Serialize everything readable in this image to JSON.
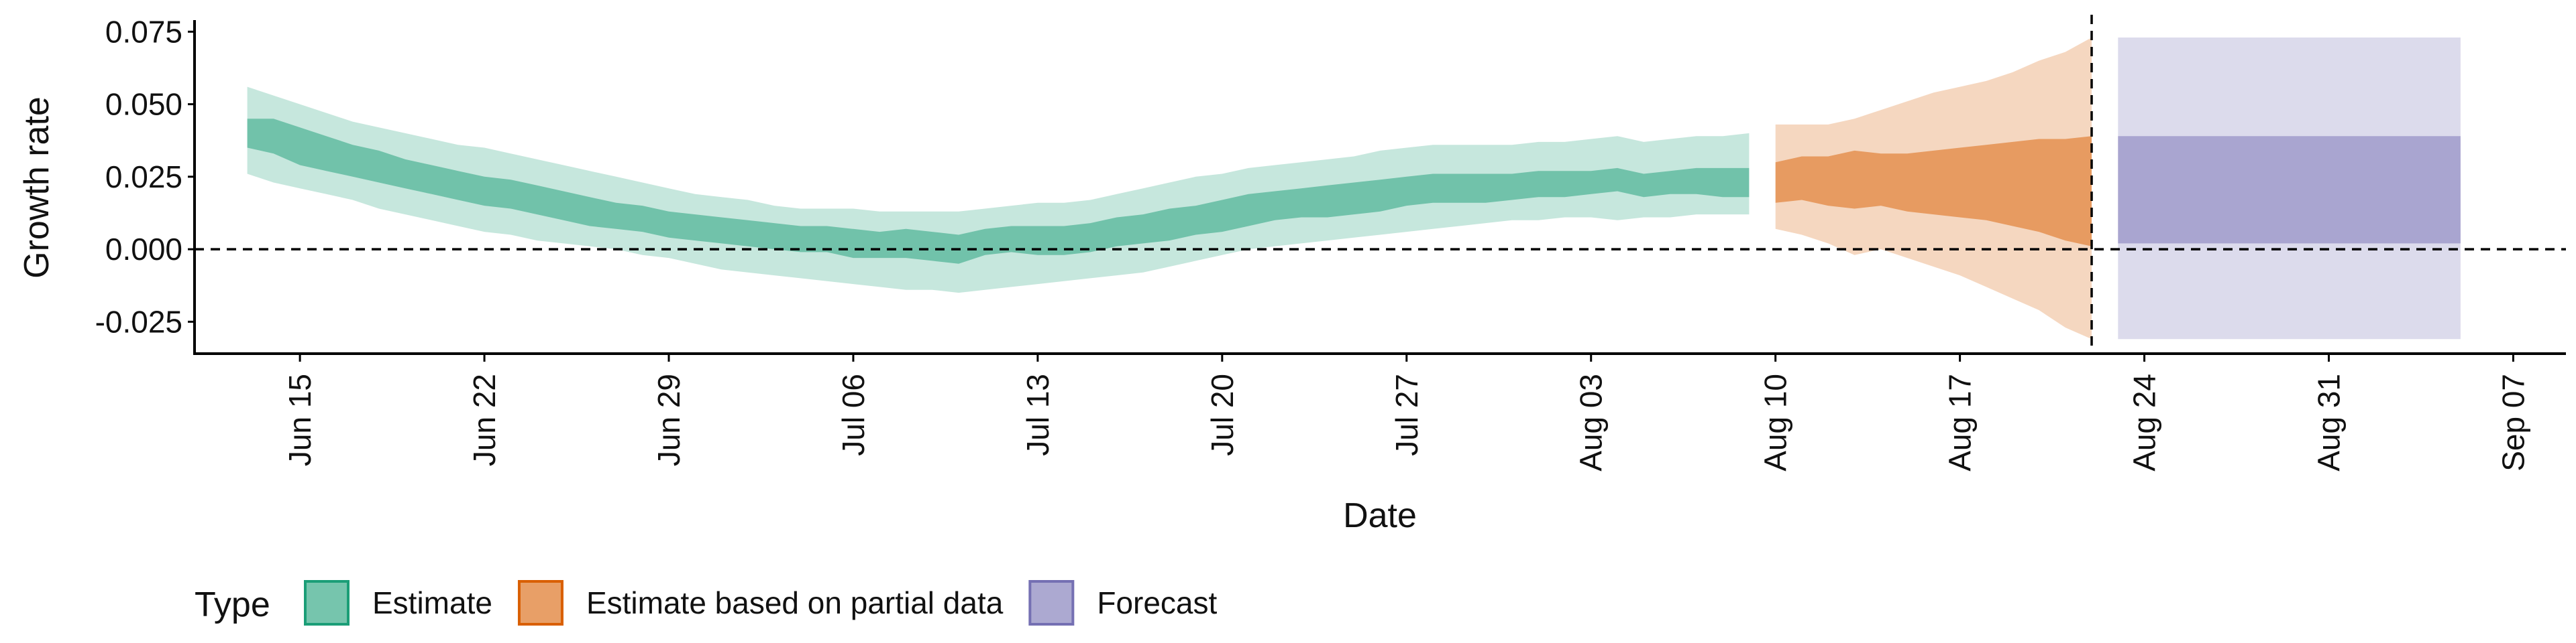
{
  "chart_data": {
    "type": "area",
    "xlabel": "Date",
    "ylabel": "Growth rate",
    "xlim": [
      "2020-06-11",
      "2020-09-09"
    ],
    "ylim": [
      -0.036,
      0.079
    ],
    "x_ticks": [
      {
        "date": "2020-06-15",
        "label": "Jun 15"
      },
      {
        "date": "2020-06-22",
        "label": "Jun 22"
      },
      {
        "date": "2020-06-29",
        "label": "Jun 29"
      },
      {
        "date": "2020-07-06",
        "label": "Jul 06"
      },
      {
        "date": "2020-07-13",
        "label": "Jul 13"
      },
      {
        "date": "2020-07-20",
        "label": "Jul 20"
      },
      {
        "date": "2020-07-27",
        "label": "Jul 27"
      },
      {
        "date": "2020-08-03",
        "label": "Aug 03"
      },
      {
        "date": "2020-08-10",
        "label": "Aug 10"
      },
      {
        "date": "2020-08-17",
        "label": "Aug 17"
      },
      {
        "date": "2020-08-24",
        "label": "Aug 24"
      },
      {
        "date": "2020-08-31",
        "label": "Aug 31"
      },
      {
        "date": "2020-09-07",
        "label": "Sep 07"
      }
    ],
    "y_ticks": [
      {
        "value": 0.075,
        "label": "0.075"
      },
      {
        "value": 0.05,
        "label": "0.050"
      },
      {
        "value": 0.025,
        "label": "0.025"
      },
      {
        "value": 0.0,
        "label": "0.000"
      },
      {
        "value": -0.025,
        "label": "-0.025"
      }
    ],
    "reference_lines": [
      {
        "axis": "y",
        "value": 0,
        "style": "dashed"
      },
      {
        "axis": "x",
        "value": "2020-08-22",
        "style": "dashed"
      }
    ],
    "grid": false,
    "legend": {
      "title": "Type",
      "position": "bottom-left",
      "items": [
        {
          "label": "Estimate",
          "color": "#1b9e77"
        },
        {
          "label": "Estimate based on partial data",
          "color": "#d95f02"
        },
        {
          "label": "Forecast",
          "color": "#7570b3"
        }
      ]
    },
    "series": [
      {
        "name": "Estimate",
        "color": "#1b9e77",
        "x": [
          "2020-06-13",
          "2020-06-14",
          "2020-06-15",
          "2020-06-16",
          "2020-06-17",
          "2020-06-18",
          "2020-06-19",
          "2020-06-20",
          "2020-06-21",
          "2020-06-22",
          "2020-06-23",
          "2020-06-24",
          "2020-06-25",
          "2020-06-26",
          "2020-06-27",
          "2020-06-28",
          "2020-06-29",
          "2020-06-30",
          "2020-07-01",
          "2020-07-02",
          "2020-07-03",
          "2020-07-04",
          "2020-07-05",
          "2020-07-06",
          "2020-07-07",
          "2020-07-08",
          "2020-07-09",
          "2020-07-10",
          "2020-07-11",
          "2020-07-12",
          "2020-07-13",
          "2020-07-14",
          "2020-07-15",
          "2020-07-16",
          "2020-07-17",
          "2020-07-18",
          "2020-07-19",
          "2020-07-20",
          "2020-07-21",
          "2020-07-22",
          "2020-07-23",
          "2020-07-24",
          "2020-07-25",
          "2020-07-26",
          "2020-07-27",
          "2020-07-28",
          "2020-07-29",
          "2020-07-30",
          "2020-07-31",
          "2020-08-01",
          "2020-08-02",
          "2020-08-03",
          "2020-08-04",
          "2020-08-05",
          "2020-08-06",
          "2020-08-07",
          "2020-08-08",
          "2020-08-09"
        ],
        "lower_90": [
          0.026,
          0.023,
          0.021,
          0.019,
          0.017,
          0.014,
          0.012,
          0.01,
          0.008,
          0.006,
          0.005,
          0.003,
          0.002,
          0.001,
          0.0,
          -0.002,
          -0.003,
          -0.005,
          -0.007,
          -0.008,
          -0.009,
          -0.01,
          -0.011,
          -0.012,
          -0.013,
          -0.014,
          -0.014,
          -0.015,
          -0.014,
          -0.013,
          -0.012,
          -0.011,
          -0.01,
          -0.009,
          -0.008,
          -0.006,
          -0.004,
          -0.002,
          0.0,
          0.001,
          0.002,
          0.003,
          0.004,
          0.005,
          0.006,
          0.007,
          0.008,
          0.009,
          0.01,
          0.01,
          0.011,
          0.011,
          0.01,
          0.011,
          0.011,
          0.012,
          0.012,
          0.012
        ],
        "lower_50": [
          0.035,
          0.033,
          0.029,
          0.027,
          0.025,
          0.023,
          0.021,
          0.019,
          0.017,
          0.015,
          0.014,
          0.012,
          0.01,
          0.008,
          0.007,
          0.006,
          0.004,
          0.003,
          0.002,
          0.001,
          0.0,
          -0.001,
          -0.001,
          -0.003,
          -0.003,
          -0.003,
          -0.004,
          -0.005,
          -0.002,
          -0.001,
          -0.002,
          -0.002,
          -0.001,
          0.001,
          0.002,
          0.003,
          0.005,
          0.006,
          0.008,
          0.01,
          0.011,
          0.011,
          0.012,
          0.013,
          0.015,
          0.016,
          0.016,
          0.016,
          0.017,
          0.018,
          0.018,
          0.019,
          0.02,
          0.018,
          0.019,
          0.019,
          0.018,
          0.018
        ],
        "upper_50": [
          0.045,
          0.045,
          0.042,
          0.039,
          0.036,
          0.034,
          0.031,
          0.029,
          0.027,
          0.025,
          0.024,
          0.022,
          0.02,
          0.018,
          0.016,
          0.015,
          0.013,
          0.012,
          0.011,
          0.01,
          0.009,
          0.008,
          0.008,
          0.007,
          0.006,
          0.007,
          0.006,
          0.005,
          0.007,
          0.008,
          0.008,
          0.008,
          0.009,
          0.011,
          0.012,
          0.014,
          0.015,
          0.017,
          0.019,
          0.02,
          0.021,
          0.022,
          0.023,
          0.024,
          0.025,
          0.026,
          0.026,
          0.026,
          0.026,
          0.027,
          0.027,
          0.027,
          0.028,
          0.026,
          0.027,
          0.028,
          0.028,
          0.028
        ],
        "upper_90": [
          0.056,
          0.053,
          0.05,
          0.047,
          0.044,
          0.042,
          0.04,
          0.038,
          0.036,
          0.035,
          0.033,
          0.031,
          0.029,
          0.027,
          0.025,
          0.023,
          0.021,
          0.019,
          0.018,
          0.017,
          0.015,
          0.014,
          0.014,
          0.014,
          0.013,
          0.013,
          0.013,
          0.013,
          0.014,
          0.015,
          0.016,
          0.016,
          0.017,
          0.019,
          0.021,
          0.023,
          0.025,
          0.026,
          0.028,
          0.029,
          0.03,
          0.031,
          0.032,
          0.034,
          0.035,
          0.036,
          0.036,
          0.036,
          0.036,
          0.037,
          0.037,
          0.038,
          0.039,
          0.037,
          0.038,
          0.039,
          0.039,
          0.04
        ]
      },
      {
        "name": "Estimate based on partial data",
        "color": "#d95f02",
        "x": [
          "2020-08-10",
          "2020-08-11",
          "2020-08-12",
          "2020-08-13",
          "2020-08-14",
          "2020-08-15",
          "2020-08-16",
          "2020-08-17",
          "2020-08-18",
          "2020-08-19",
          "2020-08-20",
          "2020-08-21",
          "2020-08-22"
        ],
        "lower_90": [
          0.007,
          0.005,
          0.002,
          -0.002,
          0.0,
          -0.003,
          -0.006,
          -0.009,
          -0.013,
          -0.017,
          -0.021,
          -0.027,
          -0.031
        ],
        "lower_50": [
          0.016,
          0.017,
          0.015,
          0.014,
          0.015,
          0.013,
          0.012,
          0.011,
          0.01,
          0.008,
          0.006,
          0.003,
          0.001
        ],
        "upper_50": [
          0.03,
          0.032,
          0.032,
          0.034,
          0.033,
          0.033,
          0.034,
          0.035,
          0.036,
          0.037,
          0.038,
          0.038,
          0.039
        ],
        "upper_90": [
          0.043,
          0.043,
          0.043,
          0.045,
          0.048,
          0.051,
          0.054,
          0.056,
          0.058,
          0.061,
          0.065,
          0.068,
          0.073
        ]
      },
      {
        "name": "Forecast",
        "color": "#7570b3",
        "x": [
          "2020-08-23",
          "2020-09-05"
        ],
        "lower_90": [
          -0.031,
          -0.031
        ],
        "lower_50": [
          0.002,
          0.002
        ],
        "upper_50": [
          0.039,
          0.039
        ],
        "upper_90": [
          0.073,
          0.073
        ]
      }
    ]
  }
}
